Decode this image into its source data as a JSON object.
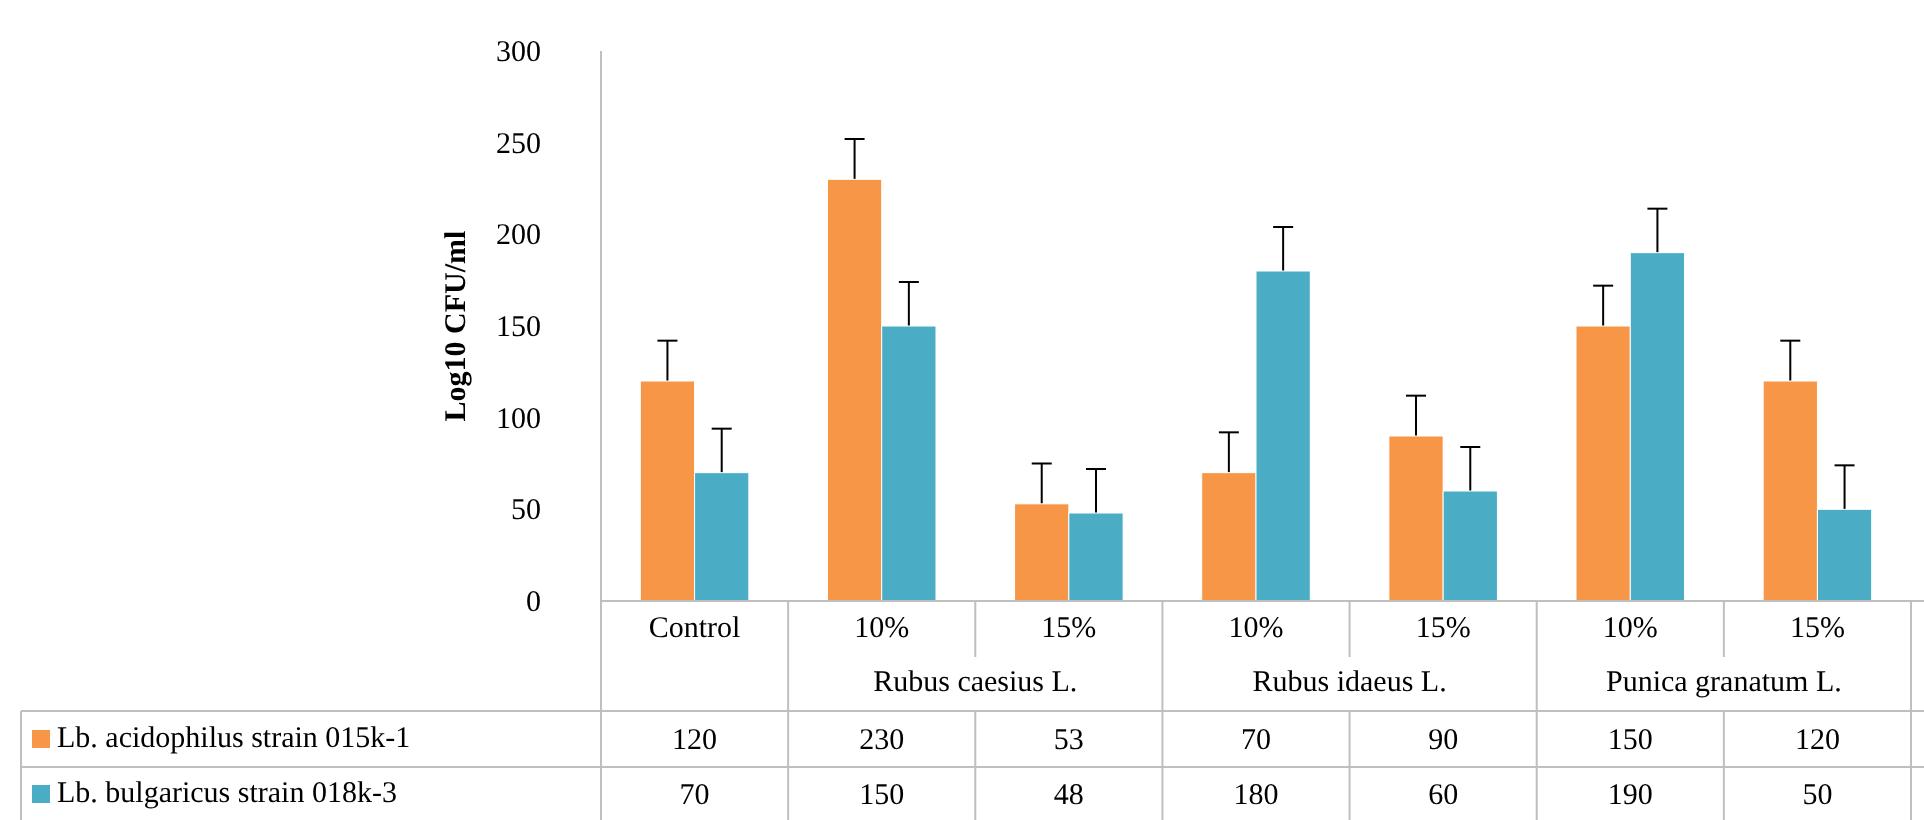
{
  "chart_data": {
    "type": "bar",
    "ylabel": "Log10 CFU/ml",
    "categories": [
      "Control",
      "10%",
      "15%",
      "10%",
      "15%",
      "10%",
      "15%"
    ],
    "annotations": [
      "Rubus caesius L.",
      "Rubus idaeus L.",
      "Punica granatum L."
    ],
    "series": [
      {
        "name": "Lb. acidophilus strain 015k-1",
        "color": "#f79646",
        "values": [
          120,
          230,
          53,
          70,
          90,
          150,
          120
        ],
        "errors": [
          22,
          22,
          22,
          22,
          22,
          22,
          22
        ]
      },
      {
        "name": "Lb. bulgaricus strain 018k-3",
        "color": "#4bacc6",
        "values": [
          70,
          150,
          48,
          180,
          60,
          190,
          50
        ],
        "errors": [
          24,
          24,
          24,
          24,
          24,
          24,
          24
        ]
      }
    ],
    "ylim": [
      0,
      300
    ],
    "yticks": [
      0,
      50,
      100,
      150,
      200,
      250,
      300
    ],
    "grid": false,
    "legend": "bottom",
    "data_labels": true
  }
}
